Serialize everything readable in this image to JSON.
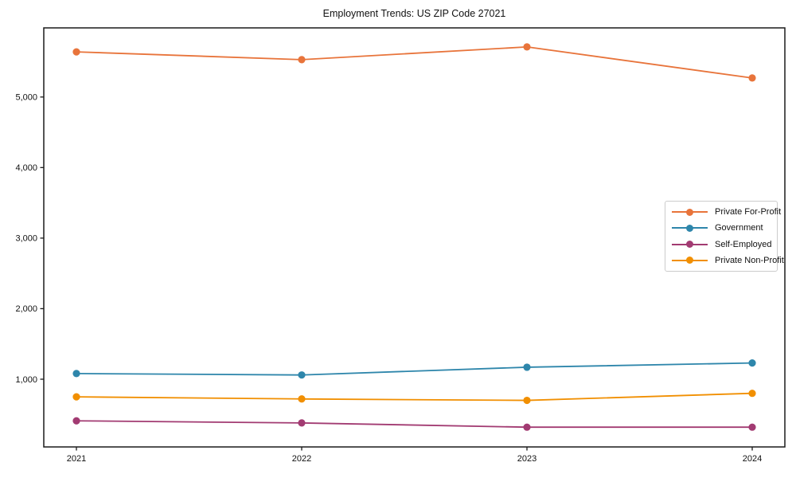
{
  "figure": {
    "title": "Employment Trends: US ZIP Code 27021"
  },
  "chart_data": {
    "type": "line",
    "title": "Employment Trends: US ZIP Code 27021",
    "xlabel": "",
    "ylabel": "",
    "categories": [
      2021,
      2022,
      2023,
      2024
    ],
    "x_tick_labels": [
      "2021",
      "2022",
      "2023",
      "2024"
    ],
    "y_ticks": [
      1000,
      2000,
      3000,
      4000,
      5000
    ],
    "y_tick_labels": [
      "1,000",
      "2,000",
      "3,000",
      "4,000",
      "5,000"
    ],
    "ylim": [
      40,
      5980
    ],
    "grid": false,
    "legend_position": "center-right",
    "marker": "circle",
    "series": [
      {
        "name": "Private For-Profit",
        "color": "#E8743B",
        "values": [
          5640,
          5530,
          5710,
          5270
        ]
      },
      {
        "name": "Government",
        "color": "#2E86AB",
        "values": [
          1080,
          1060,
          1170,
          1230
        ]
      },
      {
        "name": "Self-Employed",
        "color": "#A23B72",
        "values": [
          410,
          380,
          320,
          320
        ]
      },
      {
        "name": "Private Non-Profit",
        "color": "#F18F01",
        "values": [
          750,
          720,
          700,
          800
        ]
      }
    ],
    "colors": {
      "spine": "#1a1a1a",
      "tick": "#1a1a1a",
      "text": "#111111",
      "background": "#ffffff"
    }
  }
}
